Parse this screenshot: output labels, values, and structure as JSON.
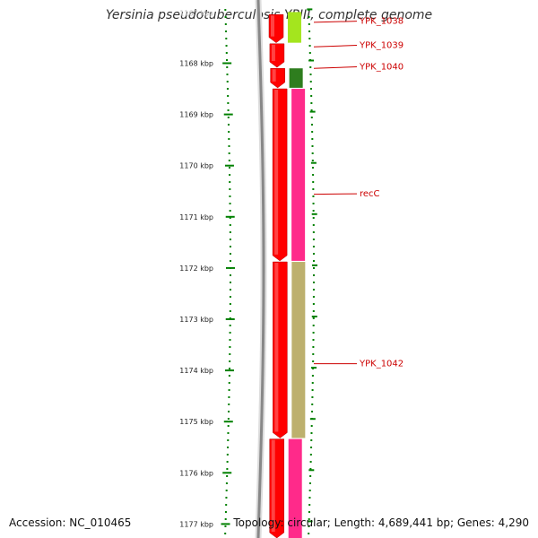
{
  "title": "Yersinia pseudotuberculosis YPIII, complete genome",
  "accession_text": "Accession: NC_010465",
  "stats_text": "Topology: circular; Length: 4,689,441 bp; Genes: 4,290",
  "ruler": {
    "unit": "kbp",
    "top_partial_label": "1167 kbp",
    "ticks": [
      1168,
      1169,
      1170,
      1171,
      1172,
      1173,
      1174,
      1175,
      1176,
      1177
    ]
  },
  "colors": {
    "accent": "#008000",
    "label": "#cc0000",
    "backbone": "#888888",
    "forward_gene": "#ff0000",
    "cds_green_light": "#a4e51e",
    "cds_green_dark": "#2e7d1e",
    "cds_pink": "#ff2a8a",
    "cds_olive": "#bdb06e"
  },
  "features": [
    {
      "name": "YPK_1038",
      "start_kbp": 1167.05,
      "end_kbp": 1167.6,
      "strand": "forward",
      "type": "gene"
    },
    {
      "name": "YPK_1039",
      "start_kbp": 1167.62,
      "end_kbp": 1168.08,
      "strand": "forward",
      "type": "gene"
    },
    {
      "name": "YPK_1040",
      "start_kbp": 1168.1,
      "end_kbp": 1168.48,
      "strand": "forward",
      "type": "gene"
    },
    {
      "name": "recC",
      "start_kbp": 1168.5,
      "end_kbp": 1171.86,
      "strand": "forward",
      "type": "gene"
    },
    {
      "name": "YPK_1042",
      "start_kbp": 1171.88,
      "end_kbp": 1175.32,
      "strand": "forward",
      "type": "gene"
    },
    {
      "name": "",
      "start_kbp": 1175.34,
      "end_kbp": 1177.3,
      "strand": "forward",
      "type": "gene"
    }
  ],
  "cds": [
    {
      "start_kbp": 1167.0,
      "end_kbp": 1167.6,
      "color": "cds_green_light"
    },
    {
      "start_kbp": 1168.1,
      "end_kbp": 1168.48,
      "color": "cds_green_dark"
    },
    {
      "start_kbp": 1168.5,
      "end_kbp": 1171.86,
      "color": "cds_pink"
    },
    {
      "start_kbp": 1171.88,
      "end_kbp": 1175.32,
      "color": "cds_olive"
    },
    {
      "start_kbp": 1175.34,
      "end_kbp": 1177.3,
      "color": "cds_pink"
    }
  ],
  "labels": [
    {
      "text": "YPK_1038",
      "anchor_kbp": 1167.2,
      "label_kbp": 1167.18
    },
    {
      "text": "YPK_1039",
      "anchor_kbp": 1167.68,
      "label_kbp": 1167.65
    },
    {
      "text": "YPK_1040",
      "anchor_kbp": 1168.1,
      "label_kbp": 1168.07
    },
    {
      "text": "recC",
      "anchor_kbp": 1170.56,
      "label_kbp": 1170.55
    },
    {
      "text": "YPK_1042",
      "anchor_kbp": 1173.87,
      "label_kbp": 1173.87
    }
  ]
}
